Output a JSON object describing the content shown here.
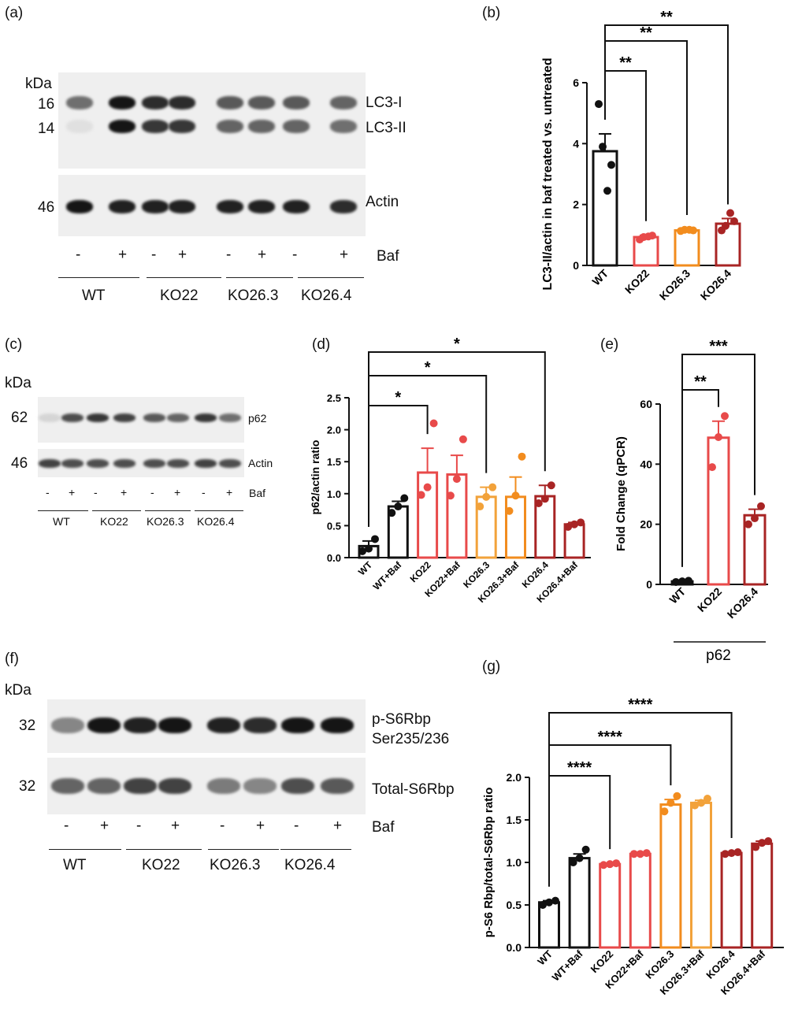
{
  "panels": {
    "a": {
      "letter": "(a)",
      "kda": "kDa",
      "mw": [
        "16",
        "14",
        "46"
      ],
      "bands": [
        "LC3-I",
        "LC3-II",
        "Actin"
      ],
      "baf_signs": [
        "-",
        "+",
        "-",
        "+",
        "-",
        "+",
        "-",
        "+"
      ],
      "baf_label": "Baf",
      "groups": [
        "WT",
        "KO22",
        "KO26.3",
        "KO26.4"
      ],
      "intensity": {
        "LC3-I": [
          0.55,
          0.95,
          0.85,
          0.85,
          0.65,
          0.65,
          0.65,
          0.6
        ],
        "LC3-II": [
          0.05,
          0.95,
          0.8,
          0.8,
          0.6,
          0.6,
          0.6,
          0.55
        ],
        "Actin": [
          0.95,
          0.9,
          0.9,
          0.9,
          0.9,
          0.9,
          0.9,
          0.85
        ]
      }
    },
    "c": {
      "letter": "(c)",
      "kda": "kDa",
      "mw": [
        "62",
        "46"
      ],
      "bands": [
        "p62",
        "Actin"
      ],
      "baf_signs": [
        "-",
        "+",
        "-",
        "+",
        "-",
        "+",
        "-",
        "+"
      ],
      "baf_label": "Baf",
      "groups": [
        "WT",
        "KO22",
        "KO26.3",
        "KO26.4"
      ],
      "intensity": {
        "p62": [
          0.1,
          0.7,
          0.8,
          0.75,
          0.65,
          0.6,
          0.8,
          0.55
        ],
        "Actin": [
          0.75,
          0.7,
          0.7,
          0.7,
          0.7,
          0.7,
          0.75,
          0.7
        ]
      }
    },
    "f": {
      "letter": "(f)",
      "kda": "kDa",
      "mw": [
        "32",
        "32"
      ],
      "bands": [
        "p-S6Rbp",
        "Ser235/236",
        "Total-S6Rbp"
      ],
      "baf_signs": [
        "-",
        "+",
        "-",
        "+",
        "-",
        "+",
        "-",
        "+"
      ],
      "baf_label": "Baf",
      "groups": [
        "WT",
        "KO22",
        "KO26.3",
        "KO26.4"
      ],
      "intensity": {
        "p-S6Rbp": [
          0.45,
          0.95,
          0.9,
          0.95,
          0.9,
          0.85,
          0.95,
          0.95
        ],
        "Total-S6Rbp": [
          0.6,
          0.6,
          0.75,
          0.75,
          0.5,
          0.45,
          0.7,
          0.65
        ]
      }
    }
  },
  "colors": {
    "WT": "#111111",
    "KO22": "#e84a4a",
    "KO26.3": "#f28c1e",
    "KO26.4": "#a82424",
    "KO26.3_light": "#f2a23a"
  },
  "chart_data": [
    {
      "panel": "(b)",
      "type": "bar",
      "categories": [
        "WT",
        "KO22",
        "KO26.3",
        "KO26.4"
      ],
      "values": [
        3.75,
        0.93,
        1.15,
        1.37
      ],
      "sem": [
        0.57,
        0.06,
        0.04,
        0.17
      ],
      "points": [
        [
          5.3,
          3.9,
          3.3,
          2.45
        ],
        [
          0.85,
          0.93,
          0.98,
          0.95
        ],
        [
          1.13,
          1.17,
          1.15,
          1.17
        ],
        [
          1.15,
          1.3,
          1.45,
          1.72
        ]
      ],
      "colors": [
        "#111111",
        "#e84a4a",
        "#f28c1e",
        "#a82424"
      ],
      "ylabel": "LC3-II/actin in baf treated vs. untreated",
      "ylim": [
        0,
        6
      ],
      "yticks": [
        0,
        2,
        4,
        6
      ],
      "significance": [
        {
          "from": "WT",
          "to": "KO22",
          "label": "**"
        },
        {
          "from": "WT",
          "to": "KO26.3",
          "label": "**"
        },
        {
          "from": "WT",
          "to": "KO26.4",
          "label": "**"
        }
      ]
    },
    {
      "panel": "(d)",
      "type": "bar",
      "categories": [
        "WT",
        "WT+Baf",
        "KO22",
        "KO22+Baf",
        "KO26.3",
        "KO26.3+Baf",
        "KO26.4",
        "KO26.4+Baf"
      ],
      "values": [
        0.18,
        0.8,
        1.33,
        1.3,
        0.95,
        0.95,
        0.96,
        0.52
      ],
      "sem": [
        0.08,
        0.08,
        0.38,
        0.3,
        0.15,
        0.31,
        0.17,
        0.03
      ],
      "points": [
        [
          0.1,
          0.14,
          0.29
        ],
        [
          0.7,
          0.8,
          0.93
        ],
        [
          0.98,
          1.1,
          2.1
        ],
        [
          0.97,
          1.23,
          1.85
        ],
        [
          0.8,
          0.95,
          1.1
        ],
        [
          0.73,
          0.97,
          1.58
        ],
        [
          0.85,
          0.92,
          1.13
        ],
        [
          0.48,
          0.52,
          0.55
        ]
      ],
      "colors": [
        "#111111",
        "#111111",
        "#e84a4a",
        "#e84a4a",
        "#f2a23a",
        "#f28c1e",
        "#a82424",
        "#a82424"
      ],
      "ylabel": "p62/actin ratio",
      "ylim": [
        0,
        2.5
      ],
      "yticks": [
        0.0,
        0.5,
        1.0,
        1.5,
        2.0,
        2.5
      ],
      "significance": [
        {
          "from": "WT",
          "to": "KO22",
          "label": "*"
        },
        {
          "from": "WT",
          "to": "KO26.3",
          "label": "*"
        },
        {
          "from": "WT",
          "to": "KO26.4",
          "label": "*"
        }
      ]
    },
    {
      "panel": "(e)",
      "type": "bar",
      "categories": [
        "WT",
        "KO22",
        "KO26.4"
      ],
      "values": [
        1.0,
        48.8,
        23.0
      ],
      "sem": [
        0.1,
        5.5,
        2.0
      ],
      "points": [
        [
          0.8,
          1.0,
          1.2
        ],
        [
          39.0,
          49.0,
          56.0
        ],
        [
          20.0,
          22.0,
          26.0
        ]
      ],
      "colors": [
        "#111111",
        "#e84a4a",
        "#a82424"
      ],
      "ylabel": "Fold Change (qPCR)",
      "xgroup_label": "p62",
      "ylim": [
        0,
        60
      ],
      "yticks": [
        0,
        20,
        40,
        60
      ],
      "significance": [
        {
          "from": "WT",
          "to": "KO22",
          "label": "**"
        },
        {
          "from": "WT",
          "to": "KO26.4",
          "label": "***"
        }
      ]
    },
    {
      "panel": "(g)",
      "type": "bar",
      "categories": [
        "WT",
        "WT+Baf",
        "KO22",
        "KO22+Baf",
        "KO26.3",
        "KO26.3+Baf",
        "KO26.4",
        "KO26.4+Baf"
      ],
      "values": [
        0.53,
        1.05,
        0.98,
        1.1,
        1.68,
        1.7,
        1.11,
        1.22
      ],
      "sem": [
        0.02,
        0.05,
        0.01,
        0.01,
        0.06,
        0.03,
        0.01,
        0.03
      ],
      "points": [
        [
          0.5,
          0.53,
          0.55
        ],
        [
          1.0,
          1.05,
          1.15
        ],
        [
          0.97,
          0.98,
          0.99
        ],
        [
          1.1,
          1.1,
          1.11
        ],
        [
          1.6,
          1.7,
          1.78
        ],
        [
          1.67,
          1.7,
          1.75
        ],
        [
          1.1,
          1.11,
          1.12
        ],
        [
          1.18,
          1.23,
          1.25
        ]
      ],
      "colors": [
        "#111111",
        "#111111",
        "#e84a4a",
        "#e84a4a",
        "#f28c1e",
        "#f2a23a",
        "#a82424",
        "#a82424"
      ],
      "ylabel": "p-S6 Rbp/total-S6Rbp ratio",
      "ylim": [
        0,
        2.0
      ],
      "yticks": [
        0.0,
        0.5,
        1.0,
        1.5,
        2.0
      ],
      "significance": [
        {
          "from": "WT",
          "to": "KO22",
          "label": "****"
        },
        {
          "from": "WT",
          "to": "KO26.3",
          "label": "****"
        },
        {
          "from": "WT",
          "to": "KO26.4",
          "label": "****"
        }
      ]
    }
  ]
}
